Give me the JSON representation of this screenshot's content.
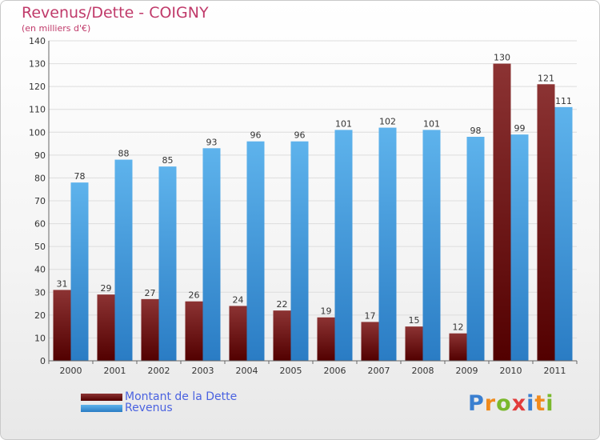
{
  "header": {
    "title": "Revenus/Dette - COIGNY",
    "subtitle": "(en milliers d'€)"
  },
  "legend": {
    "items": [
      {
        "label": "Montant de la Dette",
        "color": "#6e1a1a"
      },
      {
        "label": "Revenus",
        "color": "#4aa3e0"
      }
    ]
  },
  "logo": {
    "text": "Proxiti"
  },
  "colors": {
    "debt_top": "#8c3333",
    "debt_bottom": "#520000",
    "revenue_top": "#5eb3ec",
    "revenue_bottom": "#2a7cc4",
    "title": "#c03a6a",
    "axis_text": "#333333",
    "grid": "#dddddd"
  },
  "chart_data": {
    "type": "bar",
    "title": "Revenus/Dette - COIGNY",
    "ylabel": "(en milliers d'€)",
    "xlabel": "",
    "categories": [
      "2000",
      "2001",
      "2002",
      "2003",
      "2004",
      "2005",
      "2006",
      "2007",
      "2008",
      "2009",
      "2010",
      "2011"
    ],
    "series": [
      {
        "name": "Montant de la Dette",
        "values": [
          31,
          29,
          27,
          26,
          24,
          22,
          19,
          17,
          15,
          12,
          130,
          121
        ]
      },
      {
        "name": "Revenus",
        "values": [
          78,
          88,
          85,
          93,
          96,
          96,
          101,
          102,
          101,
          98,
          99,
          111
        ]
      }
    ],
    "ylim": [
      0,
      140
    ],
    "yticks": [
      0,
      10,
      20,
      30,
      40,
      50,
      60,
      70,
      80,
      90,
      100,
      110,
      120,
      130,
      140
    ],
    "grid": true,
    "legend_position": "bottom-left"
  }
}
